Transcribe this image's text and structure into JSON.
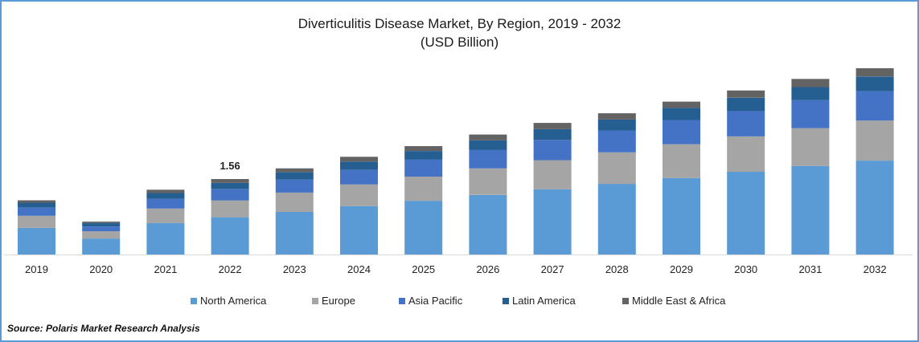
{
  "chart_data": {
    "type": "bar",
    "stacked": true,
    "title": "Diverticulitis Disease Market, By Region, 2019 - 2032",
    "subtitle": "(USD Billion)",
    "xlabel": "",
    "ylabel": "",
    "categories": [
      "2019",
      "2020",
      "2021",
      "2022",
      "2023",
      "2024",
      "2025",
      "2026",
      "2027",
      "2028",
      "2029",
      "2030",
      "2031",
      "2032"
    ],
    "series": [
      {
        "name": "North America",
        "color": "#5b9bd5",
        "values": [
          0.55,
          0.33,
          0.65,
          0.77,
          0.88,
          1.0,
          1.11,
          1.23,
          1.35,
          1.46,
          1.58,
          1.71,
          1.83,
          1.94
        ]
      },
      {
        "name": "Europe",
        "color": "#a5a5a5",
        "values": [
          0.25,
          0.15,
          0.3,
          0.35,
          0.4,
          0.45,
          0.5,
          0.55,
          0.6,
          0.65,
          0.7,
          0.73,
          0.78,
          0.83
        ]
      },
      {
        "name": "Asia Pacific",
        "color": "#4472c4",
        "values": [
          0.17,
          0.1,
          0.2,
          0.23,
          0.27,
          0.3,
          0.35,
          0.38,
          0.42,
          0.45,
          0.5,
          0.53,
          0.58,
          0.61
        ]
      },
      {
        "name": "Latin America",
        "color": "#255e91",
        "values": [
          0.1,
          0.07,
          0.12,
          0.13,
          0.15,
          0.17,
          0.18,
          0.2,
          0.22,
          0.23,
          0.25,
          0.27,
          0.27,
          0.3
        ]
      },
      {
        "name": "Middle East & Africa",
        "color": "#636363",
        "values": [
          0.05,
          0.03,
          0.07,
          0.08,
          0.08,
          0.1,
          0.1,
          0.12,
          0.13,
          0.13,
          0.13,
          0.15,
          0.17,
          0.17
        ]
      }
    ],
    "annotations": [
      {
        "category": "2022",
        "text": "1.56"
      }
    ],
    "ylim": [
      0,
      4.0
    ],
    "grid": false,
    "legend_position": "bottom"
  },
  "source": "Source: Polaris  Market Research Analysis"
}
